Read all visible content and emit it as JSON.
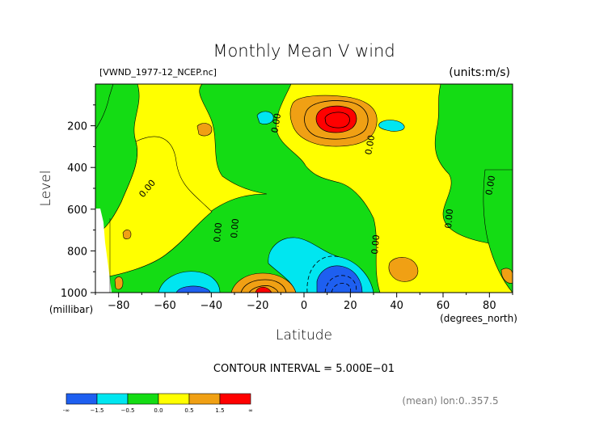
{
  "chart_data": {
    "type": "contour",
    "title": "Monthly Mean V wind",
    "dataset": "[VWND_1977-12_NCEP.nc]",
    "units": "(units:m/s)",
    "xlabel": "Latitude",
    "x_unit": "(degrees_north)",
    "ylabel": "Level",
    "y_unit": "(millibar)",
    "xlim": [
      -90,
      90
    ],
    "ylim": [
      1000,
      0
    ],
    "x_ticks": [
      -80,
      -60,
      -40,
      -20,
      0,
      20,
      40,
      60,
      80
    ],
    "x_tick_labels": [
      "−80",
      "−60",
      "−40",
      "−20",
      "0",
      "20",
      "40",
      "60",
      "80"
    ],
    "y_ticks": [
      200,
      400,
      600,
      800,
      1000
    ],
    "y_tick_labels": [
      "200",
      "400",
      "600",
      "800",
      "1000"
    ],
    "contour_interval": "CONTOUR INTERVAL = 5.000E−01",
    "contour_label": "0.00",
    "averaging": "(mean) lon:0..357.5",
    "color_levels": [
      {
        "range": "<-1.5",
        "color": "#1e5ff0"
      },
      {
        "range": "-1.5 to -0.5",
        "color": "#00e6f0"
      },
      {
        "range": "-0.5 to 0.0",
        "color": "#14dc14"
      },
      {
        "range": "0.0 to 0.5",
        "color": "#ffff00"
      },
      {
        "range": "0.5 to 1.5",
        "color": "#f0a014"
      },
      {
        "range": ">1.5",
        "color": "#ff0000"
      }
    ],
    "colorbar_labels": [
      "-∞",
      "−1.5",
      "−0.5",
      "0.0",
      "0.5",
      "1.5",
      "∞"
    ],
    "features": [
      {
        "name": "jet-max-north",
        "lat": 12,
        "level": 150,
        "sign": "positive",
        "value": 2.0
      },
      {
        "name": "surface-max-south",
        "lat": -20,
        "level": 980,
        "sign": "positive",
        "value": 1.5
      },
      {
        "name": "surface-min-north",
        "lat": 10,
        "level": 970,
        "sign": "negative",
        "value": -2.0
      },
      {
        "name": "surface-min-south",
        "lat": -50,
        "level": 990,
        "sign": "negative",
        "value": -1.5
      },
      {
        "name": "upper-min-1",
        "lat": -25,
        "level": 150,
        "sign": "negative",
        "value": -0.6
      },
      {
        "name": "upper-min-2",
        "lat": 40,
        "level": 200,
        "sign": "negative",
        "value": -0.6
      }
    ]
  }
}
